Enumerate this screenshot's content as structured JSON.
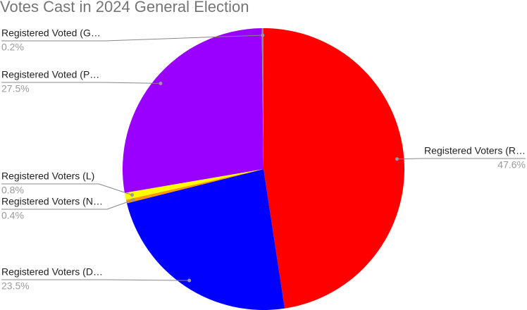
{
  "chart_data": {
    "type": "pie",
    "title": "Votes Cast in 2024 General Election",
    "categories": [
      "Registered Voters (R…",
      "Registered Voters (D…",
      "Registered Voters (N…",
      "Registered Voters (L)",
      "Registered Voted (P…",
      "Registered Voted (G…"
    ],
    "values": [
      47.6,
      23.5,
      0.4,
      0.8,
      27.5,
      0.2
    ],
    "value_labels": [
      "47.6%",
      "23.5%",
      "0.4%",
      "0.8%",
      "27.5%",
      "0.2%"
    ],
    "colors": [
      "#ff0000",
      "#0000ff",
      "#ff9900",
      "#ffff00",
      "#9900ff",
      "#8a8a8a"
    ]
  }
}
